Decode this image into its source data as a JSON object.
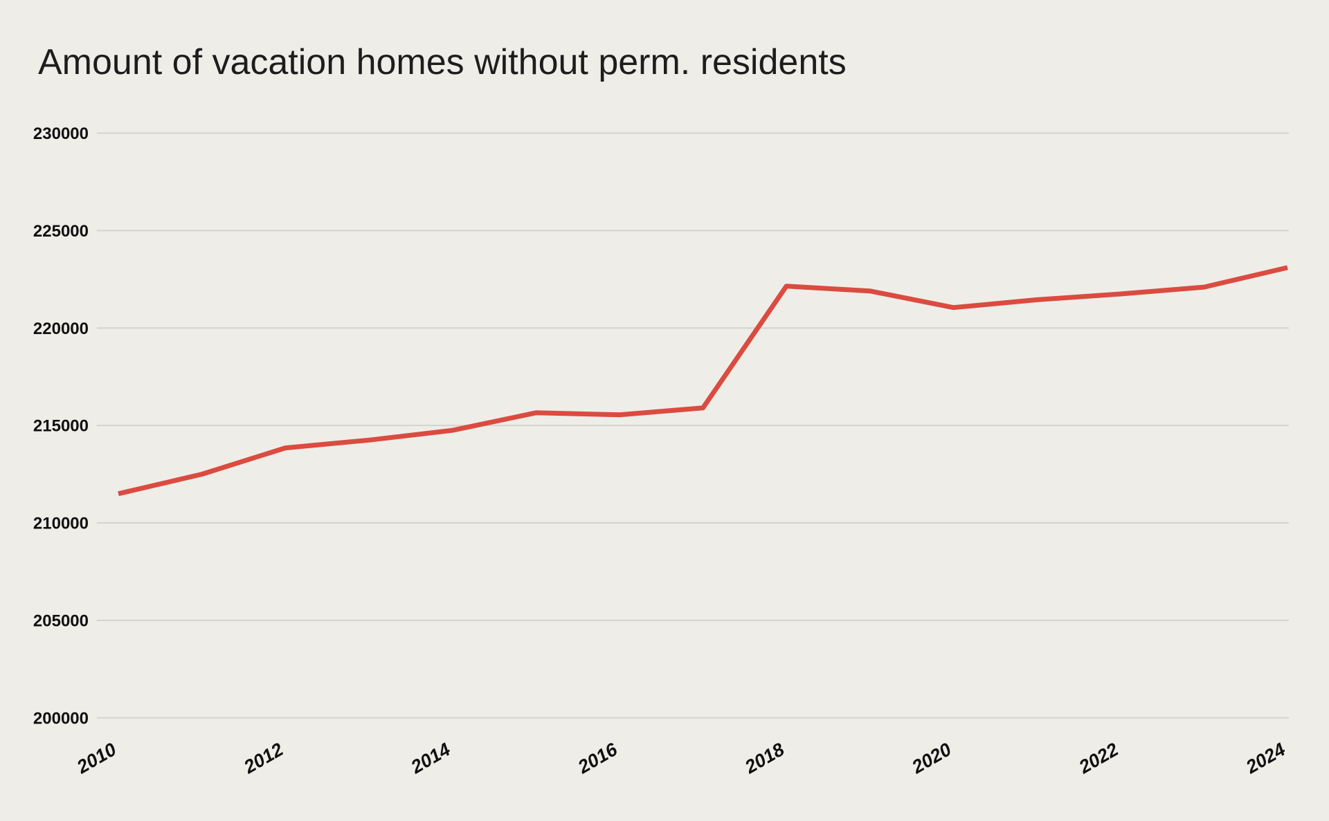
{
  "chart_data": {
    "type": "line",
    "title": "Amount of vacation homes without perm. residents",
    "series_name": "vacation-homes-without-permanent-residents",
    "x": [
      2010,
      2011,
      2012,
      2013,
      2014,
      2015,
      2016,
      2017,
      2018,
      2019,
      2020,
      2021,
      2022,
      2023,
      2024
    ],
    "values": [
      211500,
      212500,
      213850,
      214250,
      214750,
      215650,
      215550,
      215900,
      222150,
      221900,
      221050,
      221450,
      221750,
      222100,
      223100
    ],
    "xlabel": "",
    "ylabel": "",
    "ylim": [
      200000,
      230000
    ],
    "yticks": [
      230000,
      225000,
      220000,
      215000,
      210000,
      205000,
      200000
    ],
    "xticks": [
      2010,
      2012,
      2014,
      2016,
      2018,
      2020,
      2022,
      2024
    ],
    "grid": true,
    "legend": false,
    "colors": {
      "background": "#efede8",
      "line": "#db4b40",
      "gridline": "#d6d3cc",
      "tick_text": "#101010",
      "title_text": "#1d1d1d"
    }
  }
}
